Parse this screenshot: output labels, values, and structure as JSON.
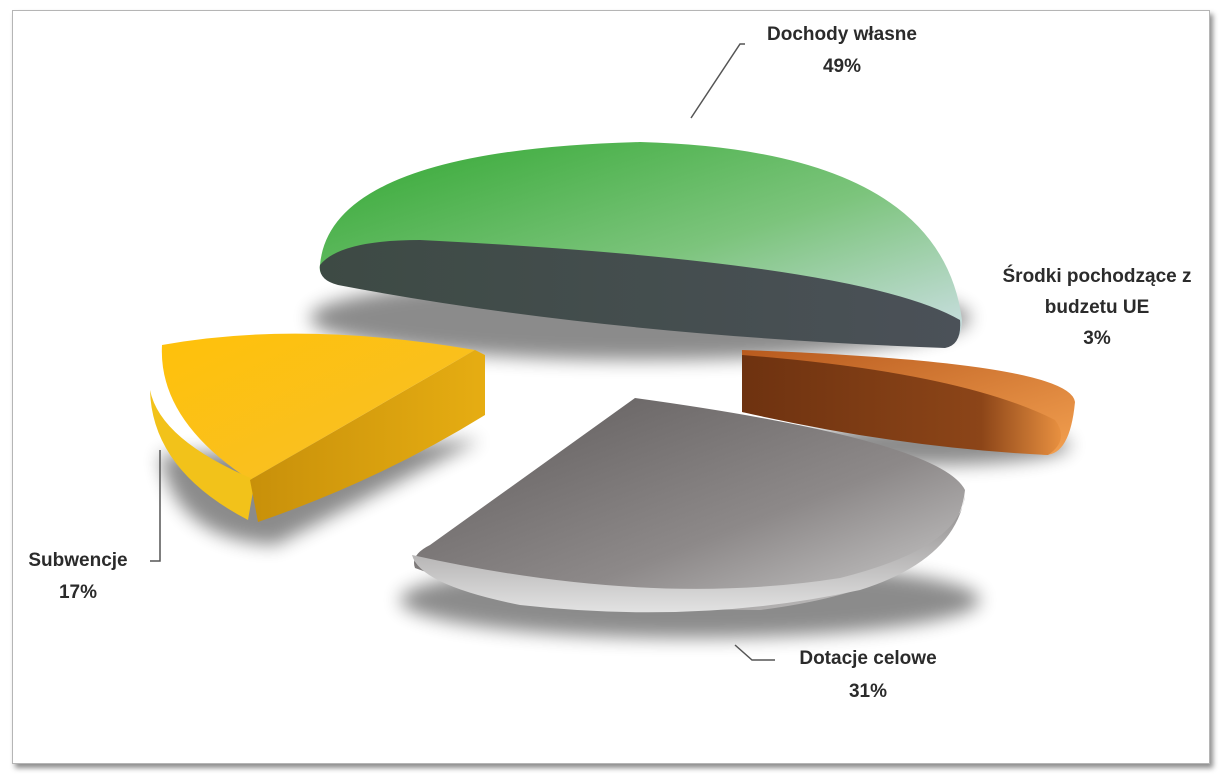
{
  "chart_data": {
    "type": "pie",
    "title": "",
    "slices": [
      {
        "label": "Dochody własne",
        "value": 49,
        "value_label": "49%",
        "color": "#3fae3c"
      },
      {
        "label": "Środki pochodzące z budzetu UE",
        "label_lines": [
          "Środki pochodzące  z",
          "budzetu UE"
        ],
        "value": 3,
        "value_label": "3%",
        "color": "#d9782a"
      },
      {
        "label": "Dotacje celowe",
        "value": 31,
        "value_label": "31%",
        "color": "#8a8a8a"
      },
      {
        "label": "Subwencje",
        "value": 17,
        "value_label": "17%",
        "color": "#f5b814"
      }
    ],
    "exploded": true,
    "style": "3d"
  }
}
